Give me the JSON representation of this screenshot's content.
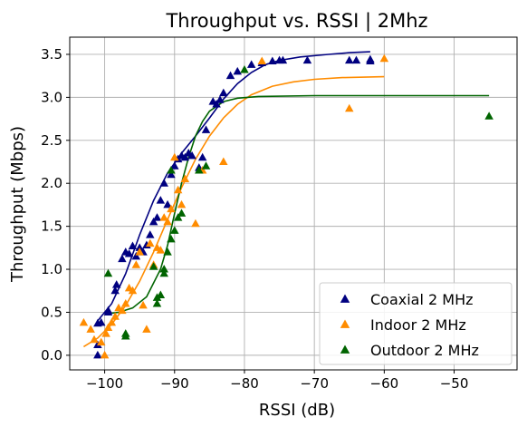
{
  "chart_data": {
    "type": "scatter",
    "title": "Throughput vs. RSSI | 2Mhz",
    "xlabel": "RSSI (dB)",
    "ylabel": "Throughput (Mbps)",
    "xlim": [
      -105,
      -41
    ],
    "ylim": [
      -0.17,
      3.7
    ],
    "xticks": [
      -100,
      -90,
      -80,
      -70,
      -60,
      -50
    ],
    "xtick_labels": [
      "−100",
      "−90",
      "−80",
      "−70",
      "−60",
      "−50"
    ],
    "yticks": [
      0.0,
      0.5,
      1.0,
      1.5,
      2.0,
      2.5,
      3.0,
      3.5
    ],
    "ytick_labels": [
      "0.0",
      "0.5",
      "1.0",
      "1.5",
      "2.0",
      "2.5",
      "3.0",
      "3.5"
    ],
    "grid": true,
    "legend_position": "bottom-right",
    "series": [
      {
        "name": "Coaxial 2 MHz",
        "color": "#000080",
        "marker": "triangle",
        "points": [
          [
            -101,
            0.0
          ],
          [
            -101,
            0.12
          ],
          [
            -101,
            0.37
          ],
          [
            -100.5,
            0.38
          ],
          [
            -99.5,
            0.52
          ],
          [
            -99.5,
            0.5
          ],
          [
            -98.5,
            0.75
          ],
          [
            -98.3,
            0.82
          ],
          [
            -97.5,
            1.12
          ],
          [
            -97,
            1.2
          ],
          [
            -96.5,
            1.18
          ],
          [
            -96,
            1.27
          ],
          [
            -95.5,
            1.15
          ],
          [
            -95,
            1.25
          ],
          [
            -94.5,
            1.2
          ],
          [
            -94,
            1.28
          ],
          [
            -93.5,
            1.4
          ],
          [
            -93,
            1.55
          ],
          [
            -92.5,
            1.6
          ],
          [
            -92,
            1.8
          ],
          [
            -91.5,
            2.0
          ],
          [
            -91,
            1.75
          ],
          [
            -90.5,
            2.1
          ],
          [
            -90,
            2.2
          ],
          [
            -89.5,
            2.28
          ],
          [
            -89,
            2.32
          ],
          [
            -88.5,
            2.3
          ],
          [
            -88,
            2.35
          ],
          [
            -87.5,
            2.32
          ],
          [
            -86.5,
            2.18
          ],
          [
            -86,
            2.3
          ],
          [
            -85.5,
            2.62
          ],
          [
            -84.5,
            2.95
          ],
          [
            -84,
            2.92
          ],
          [
            -83.5,
            2.97
          ],
          [
            -83,
            3.05
          ],
          [
            -82,
            3.25
          ],
          [
            -81,
            3.3
          ],
          [
            -79,
            3.38
          ],
          [
            -77.5,
            3.4
          ],
          [
            -76,
            3.42
          ],
          [
            -75,
            3.43
          ],
          [
            -74.5,
            3.43
          ],
          [
            -71,
            3.43
          ],
          [
            -65,
            3.43
          ],
          [
            -64,
            3.43
          ],
          [
            -62,
            3.44
          ],
          [
            -62,
            3.42
          ]
        ],
        "fit": [
          [
            -101,
            0.4
          ],
          [
            -99,
            0.6
          ],
          [
            -97,
            0.95
          ],
          [
            -95,
            1.4
          ],
          [
            -93,
            1.8
          ],
          [
            -91,
            2.12
          ],
          [
            -89,
            2.35
          ],
          [
            -87,
            2.55
          ],
          [
            -85,
            2.76
          ],
          [
            -83,
            2.98
          ],
          [
            -81,
            3.16
          ],
          [
            -79,
            3.29
          ],
          [
            -77,
            3.38
          ],
          [
            -75,
            3.43
          ],
          [
            -72,
            3.47
          ],
          [
            -68,
            3.5
          ],
          [
            -65,
            3.52
          ],
          [
            -62,
            3.53
          ]
        ]
      },
      {
        "name": "Indoor 2 MHz",
        "color": "#ff8c00",
        "marker": "triangle",
        "points": [
          [
            -103,
            0.38
          ],
          [
            -102,
            0.3
          ],
          [
            -101.5,
            0.18
          ],
          [
            -100.5,
            0.15
          ],
          [
            -100,
            0.0
          ],
          [
            -99.8,
            0.25
          ],
          [
            -99.5,
            0.32
          ],
          [
            -99,
            0.38
          ],
          [
            -98.5,
            0.45
          ],
          [
            -98,
            0.55
          ],
          [
            -97.5,
            0.52
          ],
          [
            -97,
            0.6
          ],
          [
            -96.5,
            0.78
          ],
          [
            -96,
            0.75
          ],
          [
            -95.5,
            1.05
          ],
          [
            -95,
            1.2
          ],
          [
            -94.5,
            0.58
          ],
          [
            -94,
            0.3
          ],
          [
            -93.5,
            1.3
          ],
          [
            -93,
            1.05
          ],
          [
            -92.5,
            1.25
          ],
          [
            -92,
            1.22
          ],
          [
            -91.5,
            1.6
          ],
          [
            -91,
            1.55
          ],
          [
            -90.5,
            1.7
          ],
          [
            -90,
            2.3
          ],
          [
            -89.5,
            1.92
          ],
          [
            -89,
            1.75
          ],
          [
            -88.5,
            2.05
          ],
          [
            -87,
            1.53
          ],
          [
            -86,
            2.15
          ],
          [
            -83,
            2.25
          ],
          [
            -77.5,
            3.42
          ],
          [
            -65,
            2.87
          ],
          [
            -60,
            3.45
          ]
        ],
        "fit": [
          [
            -103,
            0.1
          ],
          [
            -101,
            0.2
          ],
          [
            -99,
            0.36
          ],
          [
            -97,
            0.58
          ],
          [
            -95,
            0.86
          ],
          [
            -93,
            1.2
          ],
          [
            -91,
            1.58
          ],
          [
            -89,
            1.95
          ],
          [
            -87,
            2.28
          ],
          [
            -85,
            2.55
          ],
          [
            -83,
            2.76
          ],
          [
            -81,
            2.92
          ],
          [
            -79,
            3.03
          ],
          [
            -76,
            3.13
          ],
          [
            -73,
            3.18
          ],
          [
            -70,
            3.21
          ],
          [
            -66,
            3.23
          ],
          [
            -60,
            3.24
          ]
        ]
      },
      {
        "name": "Outdoor 2 MHz",
        "color": "#006400",
        "marker": "triangle",
        "points": [
          [
            -99.5,
            0.95
          ],
          [
            -97,
            0.25
          ],
          [
            -97,
            0.22
          ],
          [
            -93,
            1.03
          ],
          [
            -92.5,
            0.6
          ],
          [
            -92.5,
            0.67
          ],
          [
            -92,
            0.7
          ],
          [
            -91.5,
            0.95
          ],
          [
            -91.5,
            1.0
          ],
          [
            -91,
            1.2
          ],
          [
            -90.5,
            1.35
          ],
          [
            -90.5,
            2.15
          ],
          [
            -90,
            1.45
          ],
          [
            -89.5,
            1.6
          ],
          [
            -89,
            1.65
          ],
          [
            -86.5,
            2.15
          ],
          [
            -85.5,
            2.2
          ],
          [
            -80,
            3.32
          ],
          [
            -45,
            2.78
          ]
        ],
        "fit": [
          [
            -100,
            0.48
          ],
          [
            -98,
            0.5
          ],
          [
            -96,
            0.55
          ],
          [
            -94,
            0.68
          ],
          [
            -92,
            1.0
          ],
          [
            -91,
            1.28
          ],
          [
            -90,
            1.65
          ],
          [
            -89,
            2.0
          ],
          [
            -88,
            2.3
          ],
          [
            -87,
            2.55
          ],
          [
            -86,
            2.72
          ],
          [
            -85,
            2.84
          ],
          [
            -83,
            2.95
          ],
          [
            -81,
            2.99
          ],
          [
            -78,
            3.01
          ],
          [
            -70,
            3.02
          ],
          [
            -60,
            3.02
          ],
          [
            -45,
            3.02
          ]
        ]
      }
    ]
  }
}
